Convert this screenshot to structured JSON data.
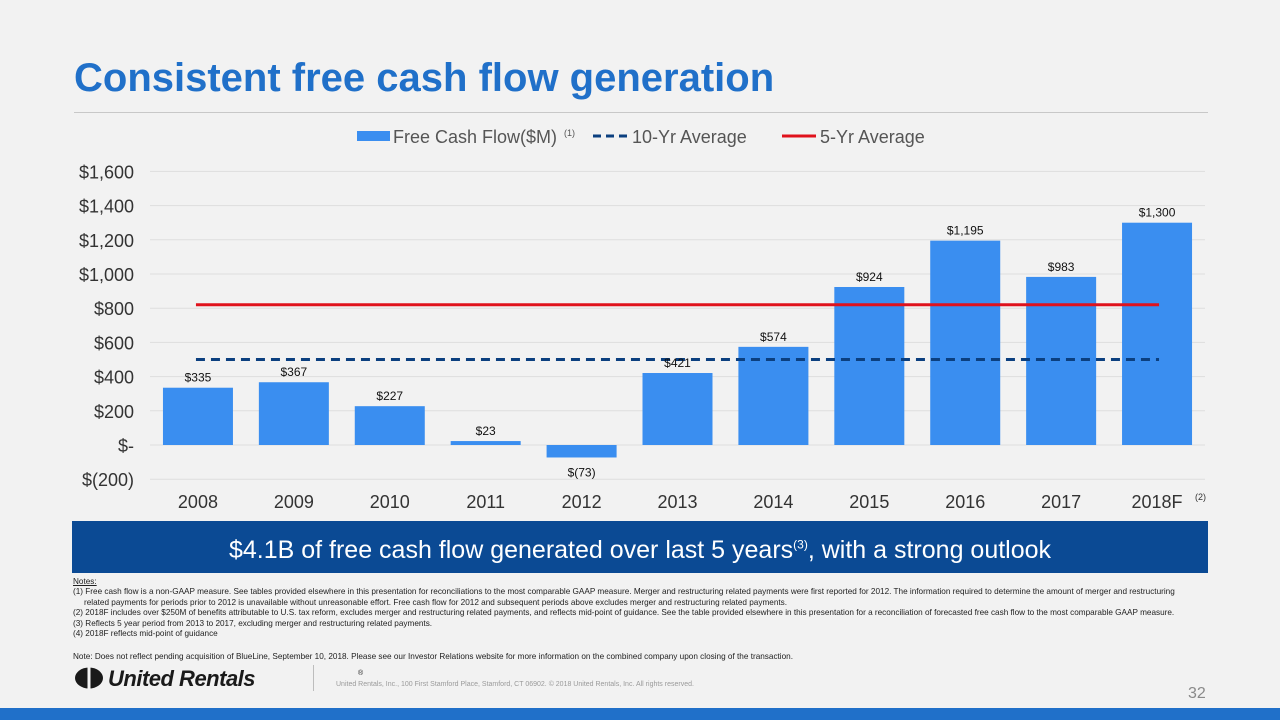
{
  "title": "Consistent free cash flow generation",
  "colors": {
    "accent": "#2070c9",
    "bar": "#3a8ef0",
    "ten_yr": "#0b3f7f",
    "five_yr": "#e0121c",
    "banner": "#0b4a94"
  },
  "chart_data": {
    "type": "bar",
    "categories": [
      "2008",
      "2009",
      "2010",
      "2011",
      "2012",
      "2013",
      "2014",
      "2015",
      "2016",
      "2017",
      "2018F"
    ],
    "category_superscripts": [
      "",
      "",
      "",
      "",
      "",
      "",
      "",
      "",
      "",
      "",
      "(2)"
    ],
    "values": [
      335,
      367,
      227,
      23,
      -73,
      421,
      574,
      924,
      1195,
      983,
      1300
    ],
    "value_labels": [
      "$335",
      "$367",
      "$227",
      "$23",
      "$(73)",
      "$421",
      "$574",
      "$924",
      "$1,195",
      "$983",
      "$1,300"
    ],
    "series": [
      {
        "name": "Free Cash Flow($M)",
        "superscript": "(1)",
        "type": "bar",
        "values": [
          335,
          367,
          227,
          23,
          -73,
          421,
          574,
          924,
          1195,
          983,
          1300
        ]
      },
      {
        "name": "10-Yr Average",
        "type": "line",
        "style": "dashed",
        "value": 500
      },
      {
        "name": "5-Yr Average",
        "type": "line",
        "style": "solid",
        "value": 820
      }
    ],
    "ylim": [
      -200,
      1600
    ],
    "yticks": [
      -200,
      0,
      200,
      400,
      600,
      800,
      1000,
      1200,
      1400,
      1600
    ],
    "ytick_labels": [
      "$(200)",
      "$-",
      "$200",
      "$400",
      "$600",
      "$800",
      "$1,000",
      "$1,200",
      "$1,400",
      "$1,600"
    ],
    "legend_position": "top-center",
    "grid": true
  },
  "banner": {
    "text_before": "$4.1B of free cash flow generated over last 5 years",
    "sup": "(3)",
    "text_after": ", with a strong outlook"
  },
  "notes": {
    "heading": "Notes:",
    "line1": "(1) Free cash flow is a non-GAAP measure.  See tables provided elsewhere in this presentation for reconciliations to the most comparable GAAP measure. Merger and restructuring related payments were first reported for 2012. The information required to determine the amount of merger and restructuring",
    "line1b": "related payments for periods prior to 2012 is unavailable without unreasonable effort. Free cash flow for 2012 and subsequent periods above excludes merger and restructuring related payments.",
    "line2": "(2) 2018F includes over $250M of benefits attributable to U.S. tax reform, excludes merger and restructuring related payments, and reflects mid-point of guidance. See the table provided elsewhere in this presentation for a reconciliation of forecasted free cash flow to the most comparable GAAP measure.",
    "line3": "(3) Reflects 5 year period from 2013 to 2017, excluding merger and restructuring related payments.",
    "line4": "(4) 2018F reflects mid-point of guidance"
  },
  "extra_note": "Note: Does not reflect pending acquisition of BlueLine, September 10, 2018. Please see our Investor Relations website for more information on the combined company upon closing of the transaction.",
  "footer": {
    "logo_text": "United Rentals",
    "logo_reg": "®",
    "copyright": "United Rentals, Inc., 100 First Stamford Place, Stamford, CT 06902. © 2018 United Rentals, Inc. All rights reserved.",
    "page_number": "32"
  }
}
